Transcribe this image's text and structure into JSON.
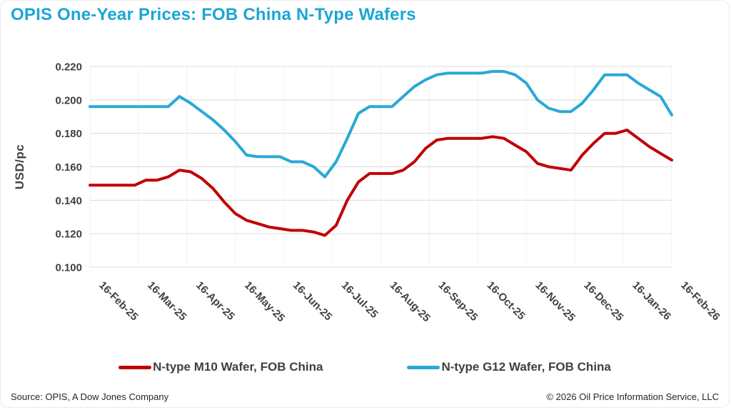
{
  "chart_data": {
    "type": "line",
    "title": "OPIS One-Year Prices: FOB China N-Type Wafers",
    "title_color": "#1BA6D5",
    "ylabel": "USD/pc",
    "ylim": [
      0.1,
      0.22
    ],
    "ytick_step": 0.02,
    "ytick_labels": [
      "0.220",
      "0.200",
      "0.180",
      "0.160",
      "0.140",
      "0.120",
      "0.100"
    ],
    "xtick_labels": [
      "16-Feb-25",
      "16-Mar-25",
      "16-Apr-25",
      "16-May-25",
      "16-Jun-25",
      "16-Jul-25",
      "16-Aug-25",
      "16-Sep-25",
      "16-Oct-25",
      "16-Nov-25",
      "16-Dec-25",
      "16-Jan-26",
      "16-Feb-26"
    ],
    "x_dates": [
      "16-Feb-25",
      "23-Feb-25",
      "2-Mar-25",
      "9-Mar-25",
      "16-Mar-25",
      "23-Mar-25",
      "30-Mar-25",
      "6-Apr-25",
      "13-Apr-25",
      "20-Apr-25",
      "27-Apr-25",
      "4-May-25",
      "11-May-25",
      "18-May-25",
      "25-May-25",
      "1-Jun-25",
      "8-Jun-25",
      "15-Jun-25",
      "22-Jun-25",
      "29-Jun-25",
      "6-Jul-25",
      "13-Jul-25",
      "20-Jul-25",
      "27-Jul-25",
      "3-Aug-25",
      "10-Aug-25",
      "17-Aug-25",
      "24-Aug-25",
      "31-Aug-25",
      "7-Sep-25",
      "14-Sep-25",
      "21-Sep-25",
      "28-Sep-25",
      "5-Oct-25",
      "12-Oct-25",
      "19-Oct-25",
      "26-Oct-25",
      "2-Nov-25",
      "9-Nov-25",
      "16-Nov-25",
      "23-Nov-25",
      "30-Nov-25",
      "7-Dec-25",
      "14-Dec-25",
      "21-Dec-25",
      "28-Dec-25",
      "4-Jan-26",
      "11-Jan-26",
      "18-Jan-26",
      "25-Jan-26",
      "1-Feb-26",
      "8-Feb-26",
      "15-Feb-26"
    ],
    "grid": {
      "horizontal": true,
      "vertical_faint_at_month_ticks": true,
      "h_color": "#DCDCDC",
      "v_color": "#F2F2F2"
    },
    "axis_text_color": "#404040",
    "legend_position": "bottom-center",
    "series": [
      {
        "name": "N-type M10 Wafer, FOB China",
        "color": "#C00000",
        "values": [
          0.149,
          0.149,
          0.149,
          0.149,
          0.149,
          0.152,
          0.152,
          0.154,
          0.158,
          0.157,
          0.153,
          0.147,
          0.139,
          0.132,
          0.128,
          0.126,
          0.124,
          0.123,
          0.122,
          0.122,
          0.121,
          0.119,
          0.125,
          0.14,
          0.151,
          0.156,
          0.156,
          0.156,
          0.158,
          0.163,
          0.171,
          0.176,
          0.177,
          0.177,
          0.177,
          0.177,
          0.178,
          0.177,
          0.173,
          0.169,
          0.162,
          0.16,
          0.159,
          0.158,
          0.167,
          0.174,
          0.18,
          0.18,
          0.182,
          0.177,
          0.172,
          0.168,
          0.164
        ]
      },
      {
        "name": "N-type G12 Wafer, FOB China",
        "color": "#29A9D4",
        "values": [
          0.196,
          0.196,
          0.196,
          0.196,
          0.196,
          0.196,
          0.196,
          0.196,
          0.202,
          0.198,
          0.193,
          0.188,
          0.182,
          0.175,
          0.167,
          0.166,
          0.166,
          0.166,
          0.163,
          0.163,
          0.16,
          0.154,
          0.163,
          0.177,
          0.192,
          0.196,
          0.196,
          0.196,
          0.202,
          0.208,
          0.212,
          0.215,
          0.216,
          0.216,
          0.216,
          0.216,
          0.217,
          0.217,
          0.215,
          0.21,
          0.2,
          0.195,
          0.193,
          0.193,
          0.198,
          0.206,
          0.215,
          0.215,
          0.215,
          0.21,
          0.206,
          0.202,
          0.191
        ]
      }
    ]
  },
  "footer": {
    "source": "Source: OPIS, A Dow Jones Company",
    "copyright": "© 2026 Oil Price Information Service, LLC"
  }
}
